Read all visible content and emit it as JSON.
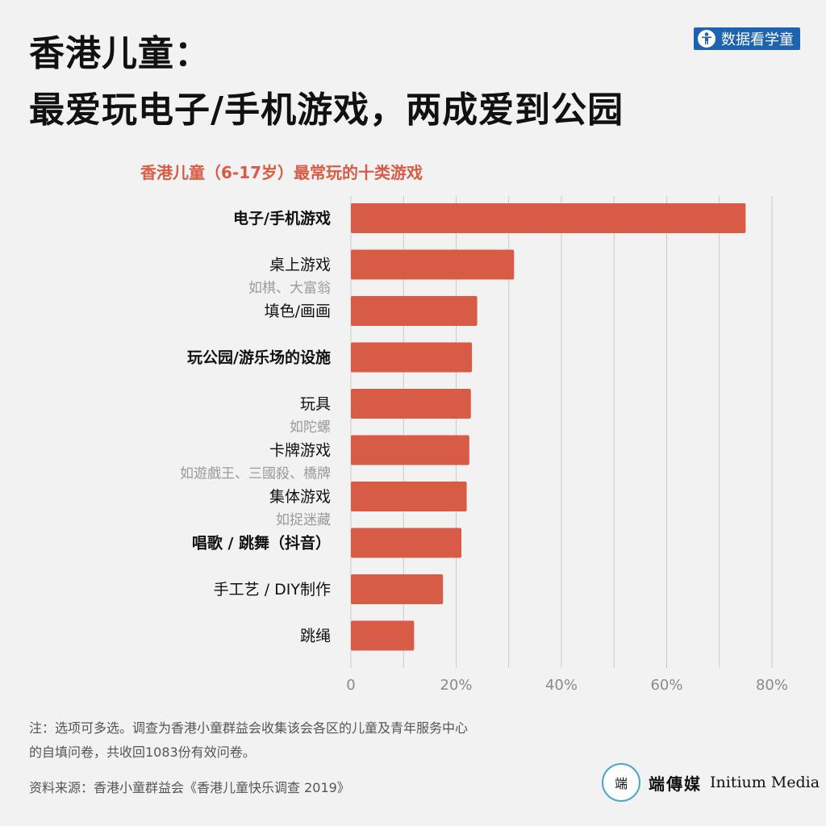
{
  "title_line1": "香港儿童：",
  "title_line2": "最爱玩电子/手机游戏，两成爱到公园",
  "brand_badge": "数据看学童",
  "chart_data": {
    "type": "bar",
    "orientation": "horizontal",
    "title": "香港儿童（6-17岁）最常玩的十类游戏",
    "categories": [
      {
        "label": "电子/手机游戏",
        "sub": "",
        "bold": true,
        "value": 75
      },
      {
        "label": "桌上游戏",
        "sub": "如棋、大富翁",
        "bold": false,
        "value": 31
      },
      {
        "label": "填色/画画",
        "sub": "",
        "bold": false,
        "value": 24
      },
      {
        "label": "玩公园/游乐场的设施",
        "sub": "",
        "bold": true,
        "value": 23
      },
      {
        "label": "玩具",
        "sub": "如陀螺",
        "bold": false,
        "value": 22.8
      },
      {
        "label": "卡牌游戏",
        "sub": "如遊戲王、三國殺、橋牌",
        "bold": false,
        "value": 22.5
      },
      {
        "label": "集体游戏",
        "sub": "如捉迷藏",
        "bold": false,
        "value": 22
      },
      {
        "label": "唱歌 / 跳舞（抖音）",
        "sub": "",
        "bold": true,
        "value": 21
      },
      {
        "label": "手工艺 / DIY制作",
        "sub": "",
        "bold": false,
        "value": 17.5
      },
      {
        "label": "跳绳",
        "sub": "",
        "bold": false,
        "value": 12
      }
    ],
    "x_ticks": [
      "0",
      "20%",
      "40%",
      "60%",
      "80%"
    ],
    "xlim": [
      0,
      80
    ],
    "grid_step": 10,
    "bar_color": "#d85c45",
    "grid": true
  },
  "note_line1": "注：选项可多选。调查为香港小童群益会收集该会各区的儿童及青年服务中心",
  "note_line2": "的自填问卷，共收回1083份有效问卷。",
  "source": "资料来源：香港小童群益会《香港儿童快乐调查 2019》",
  "logo_mark": "端",
  "logo_cn": "端傳媒",
  "logo_en": "Initium Media",
  "colors": {
    "accent": "#d85c45",
    "badge": "#1e63b0",
    "background": "#f2f2f2"
  }
}
